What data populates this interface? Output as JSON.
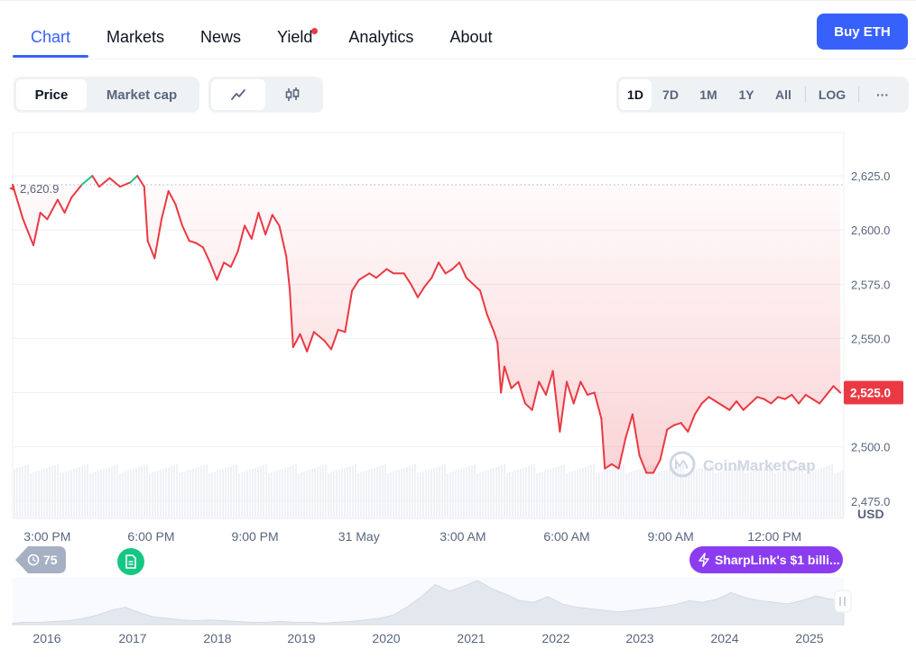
{
  "tabs": [
    {
      "label": "Chart",
      "active": true
    },
    {
      "label": "Markets",
      "active": false
    },
    {
      "label": "News",
      "active": false
    },
    {
      "label": "Yield",
      "active": false,
      "has_dot": true
    },
    {
      "label": "Analytics",
      "active": false
    },
    {
      "label": "About",
      "active": false
    }
  ],
  "buy_button": "Buy ETH",
  "chart_type_toggle": {
    "options": [
      "Price",
      "Market cap"
    ],
    "selected": "Price"
  },
  "chart_style_toggle": {
    "options": [
      "line-chart-icon",
      "candlestick-icon"
    ],
    "selected": "line-chart-icon"
  },
  "range_toggle": {
    "options": [
      "1D",
      "7D",
      "1M",
      "1Y",
      "All"
    ],
    "selected": "1D",
    "log_label": "LOG",
    "more_label": "···"
  },
  "colors": {
    "accent": "#3861fb",
    "down": "#ea3943",
    "up": "#16c784",
    "event": "#8c3cf0"
  },
  "badges": {
    "history_count": "75",
    "event_text": "SharpLink's $1 billi..."
  },
  "watermark": "CoinMarketCap",
  "chart_data": {
    "type": "line",
    "currency_label": "USD",
    "open_price_label": "2,620.9",
    "open_price": 2620.9,
    "current_price_label": "2,525.0",
    "current_price": 2525.0,
    "ylim": [
      2467,
      2645
    ],
    "y_ticks": [
      2625.0,
      2600.0,
      2575.0,
      2550.0,
      2525.0,
      2500.0,
      2475.0
    ],
    "y_tick_labels": [
      "2,625.0",
      "2,600.0",
      "2,575.0",
      "2,550.0",
      "2,525.0",
      "2,500.0",
      "2,475.0"
    ],
    "x_ticks": [
      1.0,
      4.0,
      7.0,
      10.0,
      13.0,
      16.0,
      19.0,
      22.0
    ],
    "x_tick_labels": [
      "3:00 PM",
      "6:00 PM",
      "9:00 PM",
      "31 May",
      "3:00 AM",
      "6:00 AM",
      "9:00 AM",
      "12:00 PM"
    ],
    "x_range": [
      0.0,
      24.0
    ],
    "series": [
      {
        "points": [
          [
            0.0,
            2620.9
          ],
          [
            0.3,
            2605
          ],
          [
            0.6,
            2593
          ],
          [
            0.8,
            2608
          ],
          [
            1.0,
            2605
          ],
          [
            1.3,
            2614
          ],
          [
            1.5,
            2608
          ],
          [
            1.7,
            2615
          ],
          [
            2.0,
            2621
          ],
          [
            2.3,
            2625
          ],
          [
            2.5,
            2620
          ],
          [
            2.8,
            2624
          ],
          [
            3.1,
            2620
          ],
          [
            3.4,
            2622
          ],
          [
            3.6,
            2625
          ],
          [
            3.8,
            2620
          ],
          [
            3.9,
            2595
          ],
          [
            4.1,
            2587
          ],
          [
            4.3,
            2605
          ],
          [
            4.5,
            2618
          ],
          [
            4.7,
            2612
          ],
          [
            4.9,
            2602
          ],
          [
            5.1,
            2595
          ],
          [
            5.3,
            2594
          ],
          [
            5.5,
            2592
          ],
          [
            5.7,
            2585
          ],
          [
            5.9,
            2577
          ],
          [
            6.1,
            2585
          ],
          [
            6.3,
            2583
          ],
          [
            6.5,
            2590
          ],
          [
            6.7,
            2602
          ],
          [
            6.9,
            2596
          ],
          [
            7.1,
            2608
          ],
          [
            7.3,
            2598
          ],
          [
            7.5,
            2607
          ],
          [
            7.7,
            2602
          ],
          [
            7.9,
            2588
          ],
          [
            8.0,
            2573
          ],
          [
            8.1,
            2546
          ],
          [
            8.3,
            2552
          ],
          [
            8.5,
            2544
          ],
          [
            8.7,
            2553
          ],
          [
            9.0,
            2549
          ],
          [
            9.2,
            2545
          ],
          [
            9.4,
            2554
          ],
          [
            9.6,
            2553
          ],
          [
            9.8,
            2572
          ],
          [
            10.0,
            2577
          ],
          [
            10.3,
            2580
          ],
          [
            10.5,
            2578
          ],
          [
            10.8,
            2582
          ],
          [
            11.0,
            2580
          ],
          [
            11.3,
            2580
          ],
          [
            11.5,
            2575
          ],
          [
            11.7,
            2569
          ],
          [
            11.9,
            2574
          ],
          [
            12.1,
            2578
          ],
          [
            12.3,
            2585
          ],
          [
            12.5,
            2580
          ],
          [
            12.7,
            2582
          ],
          [
            12.9,
            2585
          ],
          [
            13.1,
            2578
          ],
          [
            13.3,
            2575
          ],
          [
            13.5,
            2572
          ],
          [
            13.7,
            2561
          ],
          [
            13.9,
            2553
          ],
          [
            14.0,
            2548
          ],
          [
            14.1,
            2525
          ],
          [
            14.2,
            2537
          ],
          [
            14.4,
            2527
          ],
          [
            14.6,
            2530
          ],
          [
            14.8,
            2520
          ],
          [
            15.0,
            2517
          ],
          [
            15.2,
            2530
          ],
          [
            15.4,
            2524
          ],
          [
            15.6,
            2535
          ],
          [
            15.8,
            2507
          ],
          [
            16.0,
            2530
          ],
          [
            16.2,
            2520
          ],
          [
            16.4,
            2530
          ],
          [
            16.6,
            2524
          ],
          [
            16.8,
            2525
          ],
          [
            17.0,
            2513
          ],
          [
            17.1,
            2490
          ],
          [
            17.3,
            2492
          ],
          [
            17.5,
            2490
          ],
          [
            17.7,
            2504
          ],
          [
            17.9,
            2515
          ],
          [
            18.1,
            2496
          ],
          [
            18.3,
            2488
          ],
          [
            18.5,
            2488
          ],
          [
            18.7,
            2494
          ],
          [
            18.9,
            2508
          ],
          [
            19.1,
            2510
          ],
          [
            19.3,
            2511
          ],
          [
            19.5,
            2507
          ],
          [
            19.7,
            2515
          ],
          [
            19.9,
            2520
          ],
          [
            20.1,
            2523
          ],
          [
            20.3,
            2521
          ],
          [
            20.5,
            2519
          ],
          [
            20.7,
            2517
          ],
          [
            20.9,
            2521
          ],
          [
            21.1,
            2517
          ],
          [
            21.3,
            2520
          ],
          [
            21.5,
            2523
          ],
          [
            21.7,
            2522
          ],
          [
            21.9,
            2520
          ],
          [
            22.1,
            2523
          ],
          [
            22.3,
            2522
          ],
          [
            22.5,
            2524
          ],
          [
            22.7,
            2520
          ],
          [
            22.9,
            2524
          ],
          [
            23.1,
            2522
          ],
          [
            23.3,
            2520
          ],
          [
            23.5,
            2524
          ],
          [
            23.7,
            2528
          ],
          [
            23.9,
            2525.0
          ]
        ]
      }
    ],
    "overview": {
      "x_tick_labels": [
        "2016",
        "2017",
        "2018",
        "2019",
        "2020",
        "2021",
        "2022",
        "2023",
        "2024",
        "2025"
      ],
      "values": [
        2,
        3,
        3,
        4,
        5,
        8,
        12,
        18,
        22,
        15,
        10,
        8,
        6,
        5,
        6,
        5,
        4,
        3,
        3,
        4,
        3,
        3,
        2,
        3,
        4,
        6,
        8,
        12,
        22,
        35,
        50,
        42,
        48,
        55,
        45,
        38,
        30,
        28,
        35,
        26,
        22,
        20,
        18,
        16,
        18,
        20,
        22,
        25,
        30,
        28,
        32,
        40,
        34,
        30,
        28,
        26,
        30,
        36,
        32,
        30
      ]
    }
  }
}
